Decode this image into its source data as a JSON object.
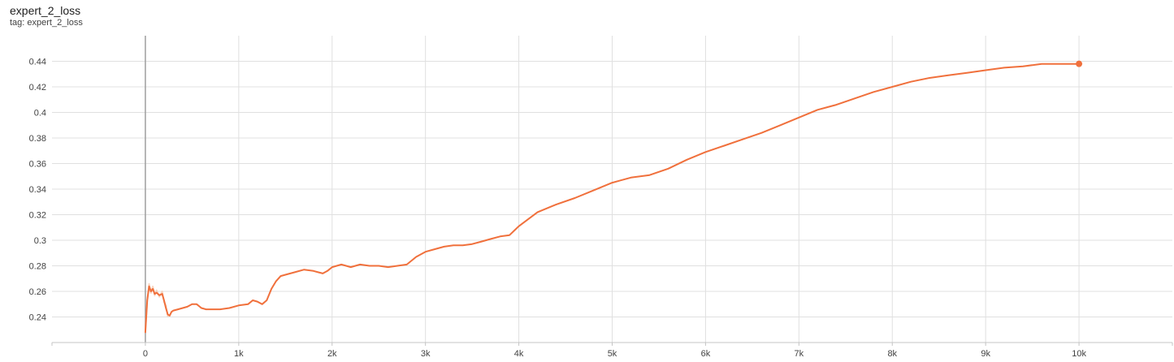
{
  "card": {
    "title": "expert_2_loss",
    "subtitle": "tag: expert_2_loss"
  },
  "colors": {
    "series": "#f0703c",
    "series_raw": "#f7c4a8",
    "grid": "#e0e0e0",
    "zero_axis": "#9e9e9e",
    "axis_line": "#c4c4c4"
  },
  "chart_data": {
    "type": "line",
    "title": "expert_2_loss",
    "subtitle": "tag: expert_2_loss",
    "xlabel": "",
    "ylabel": "",
    "xlim": [
      -1000,
      11000
    ],
    "ylim": [
      0.22,
      0.46
    ],
    "grid": true,
    "legend": "none",
    "x_ticks": [
      0,
      1000,
      2000,
      3000,
      4000,
      5000,
      6000,
      7000,
      8000,
      9000,
      10000
    ],
    "x_tick_labels": [
      "0",
      "1k",
      "2k",
      "3k",
      "4k",
      "5k",
      "6k",
      "7k",
      "8k",
      "9k",
      "10k"
    ],
    "y_ticks": [
      0.24,
      0.26,
      0.28,
      0.3,
      0.32,
      0.34,
      0.36,
      0.38,
      0.4,
      0.42,
      0.44
    ],
    "y_tick_labels": [
      "0.24",
      "0.26",
      "0.28",
      "0.3",
      "0.32",
      "0.34",
      "0.36",
      "0.38",
      "0.4",
      "0.42",
      "0.44"
    ],
    "series": [
      {
        "color": "#f0703c",
        "x": [
          0,
          20,
          40,
          60,
          80,
          100,
          120,
          150,
          180,
          200,
          220,
          240,
          260,
          280,
          300,
          350,
          400,
          450,
          500,
          550,
          600,
          650,
          700,
          800,
          900,
          1000,
          1100,
          1150,
          1200,
          1250,
          1300,
          1350,
          1400,
          1450,
          1500,
          1600,
          1700,
          1800,
          1850,
          1900,
          1950,
          2000,
          2100,
          2150,
          2200,
          2300,
          2400,
          2450,
          2500,
          2600,
          2700,
          2800,
          2900,
          3000,
          3100,
          3200,
          3300,
          3400,
          3500,
          3600,
          3700,
          3800,
          3900,
          4000,
          4200,
          4400,
          4600,
          4800,
          5000,
          5200,
          5400,
          5600,
          5800,
          6000,
          6200,
          6400,
          6600,
          6800,
          7000,
          7200,
          7400,
          7600,
          7800,
          8000,
          8200,
          8400,
          8600,
          8800,
          9000,
          9200,
          9400,
          9600,
          9800,
          10000
        ],
        "y": [
          0.228,
          0.253,
          0.264,
          0.26,
          0.262,
          0.258,
          0.259,
          0.257,
          0.258,
          0.253,
          0.247,
          0.242,
          0.241,
          0.244,
          0.245,
          0.246,
          0.247,
          0.248,
          0.25,
          0.25,
          0.247,
          0.246,
          0.246,
          0.246,
          0.247,
          0.249,
          0.25,
          0.253,
          0.252,
          0.25,
          0.253,
          0.262,
          0.268,
          0.272,
          0.273,
          0.275,
          0.277,
          0.276,
          0.275,
          0.274,
          0.276,
          0.279,
          0.281,
          0.28,
          0.279,
          0.281,
          0.28,
          0.28,
          0.28,
          0.279,
          0.28,
          0.281,
          0.287,
          0.291,
          0.293,
          0.295,
          0.296,
          0.296,
          0.297,
          0.299,
          0.301,
          0.303,
          0.304,
          0.311,
          0.322,
          0.328,
          0.333,
          0.339,
          0.345,
          0.349,
          0.351,
          0.356,
          0.363,
          0.369,
          0.374,
          0.379,
          0.384,
          0.39,
          0.396,
          0.402,
          0.406,
          0.411,
          0.416,
          0.42,
          0.424,
          0.427,
          0.429,
          0.431,
          0.433,
          0.435,
          0.436,
          0.438,
          0.438,
          0.438
        ]
      }
    ]
  }
}
